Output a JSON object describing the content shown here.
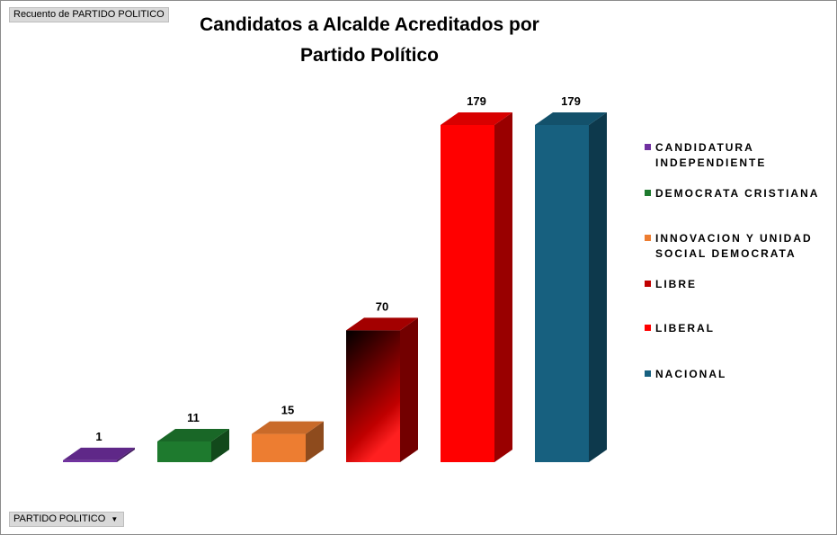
{
  "pivot": {
    "value_field": "Recuento de PARTIDO POLITICO",
    "axis_field": "PARTIDO POLITICO"
  },
  "chart_data": {
    "type": "bar3d",
    "title": "Candidatos a Alcalde Acreditados por Partido Político",
    "categories": [
      "CANDIDATURA INDEPENDIENTE",
      "DEMOCRATA CRISTIANA",
      "INNOVACION Y UNIDAD SOCIAL DEMOCRATA",
      "LIBRE",
      "LIBERAL",
      "NACIONAL"
    ],
    "values": [
      1,
      11,
      15,
      70,
      179,
      179
    ],
    "colors": [
      "#7030a0",
      "#1e7a2e",
      "#ed7d31",
      "#c00000",
      "#ff0000",
      "#17607f"
    ],
    "legend": "right"
  }
}
